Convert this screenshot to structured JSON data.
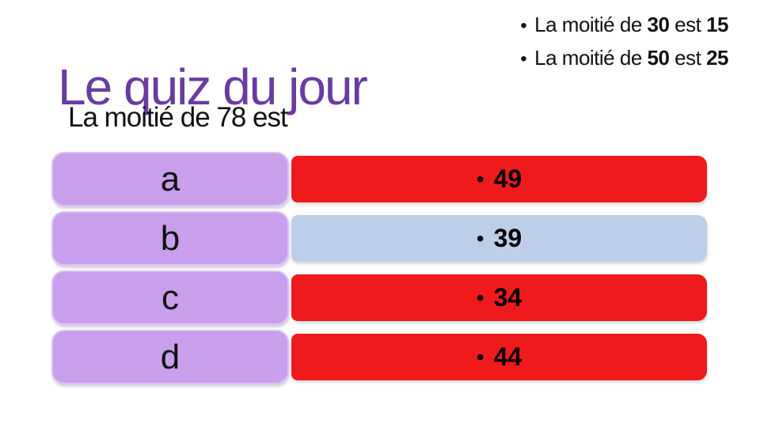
{
  "slide": {
    "title": "Le quiz du jour",
    "question": "La moitié de 78 est",
    "bullet_glyph": "•",
    "notes": [
      {
        "parts": [
          {
            "text": "La moitié de ",
            "bold": false
          },
          {
            "text": "30",
            "bold": true
          },
          {
            "text": " est ",
            "bold": false
          },
          {
            "text": "15",
            "bold": true
          }
        ]
      },
      {
        "parts": [
          {
            "text": "La moitié de ",
            "bold": false
          },
          {
            "text": "50",
            "bold": true
          },
          {
            "text": " est ",
            "bold": false
          },
          {
            "text": "25",
            "bold": true
          }
        ]
      }
    ],
    "options": [
      {
        "letter": "a",
        "value": "49",
        "bar_color": "#ee1a1c"
      },
      {
        "letter": "b",
        "value": "39",
        "bar_color": "#bdcfe8"
      },
      {
        "letter": "c",
        "value": "34",
        "bar_color": "#ee1a1c"
      },
      {
        "letter": "d",
        "value": "44",
        "bar_color": "#ee1a1c"
      }
    ],
    "colors": {
      "background": "#ffffff",
      "title": "#693ca0",
      "text": "#111111",
      "answer_box_fill": "#c99eeb",
      "answer_box_border": "#dcc3f4",
      "bar_red": "#ee1a1c",
      "bar_blue": "#bdcfe8"
    }
  }
}
